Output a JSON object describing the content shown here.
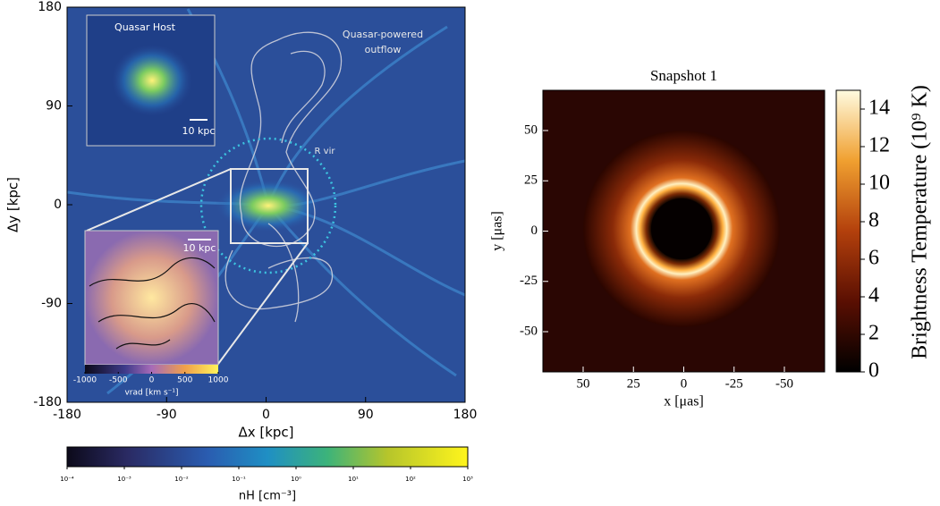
{
  "chart_data": [
    {
      "type": "image",
      "xlabel": "Δx [kpc]",
      "ylabel": "Δy [kpc]",
      "xlim": [
        -180,
        180
      ],
      "ylim": [
        -180,
        180
      ],
      "xticks": [
        -180,
        -90,
        0,
        90,
        180
      ],
      "yticks": [
        -180,
        -90,
        0,
        90,
        180
      ],
      "annotations": [
        "Quasar-powered",
        "outflow",
        "R vir"
      ],
      "colorbar": {
        "label": "nH [cm⁻³]",
        "scale": "log",
        "lim": [
          0.0001,
          1000
        ],
        "ticks": [
          {
            "value": 0.0001,
            "label": "10⁻⁴"
          },
          {
            "value": 0.001,
            "label": "10⁻³"
          },
          {
            "value": 0.01,
            "label": "10⁻²"
          },
          {
            "value": 0.1,
            "label": "10⁻¹"
          },
          {
            "value": 1,
            "label": "10⁰"
          },
          {
            "value": 10,
            "label": "10¹"
          },
          {
            "value": 100,
            "label": "10²"
          },
          {
            "value": 1000,
            "label": "10³"
          }
        ]
      },
      "insets": [
        {
          "title": "Quasar Host",
          "scale_bar": "10 kpc"
        },
        {
          "scale_bar": "10 kpc",
          "colorbar": {
            "label": "vrad [km s⁻¹]",
            "lim": [
              -1000,
              1000
            ],
            "ticks": [
              -1000,
              -500,
              0,
              500,
              1000
            ]
          }
        }
      ]
    },
    {
      "type": "image",
      "title": "Snapshot 1",
      "xlabel": "x [μas]",
      "ylabel": "y [μas]",
      "xlim": [
        70,
        -70
      ],
      "ylim": [
        -70,
        70
      ],
      "xticks": [
        50,
        25,
        0,
        -25,
        -50
      ],
      "yticks": [
        50,
        25,
        0,
        -25,
        -50
      ],
      "colorbar": {
        "label": "Brightness Temperature (10⁹ K)",
        "lim": [
          0,
          15
        ],
        "ticks": [
          0,
          2,
          4,
          6,
          8,
          10,
          12,
          14
        ]
      }
    }
  ]
}
